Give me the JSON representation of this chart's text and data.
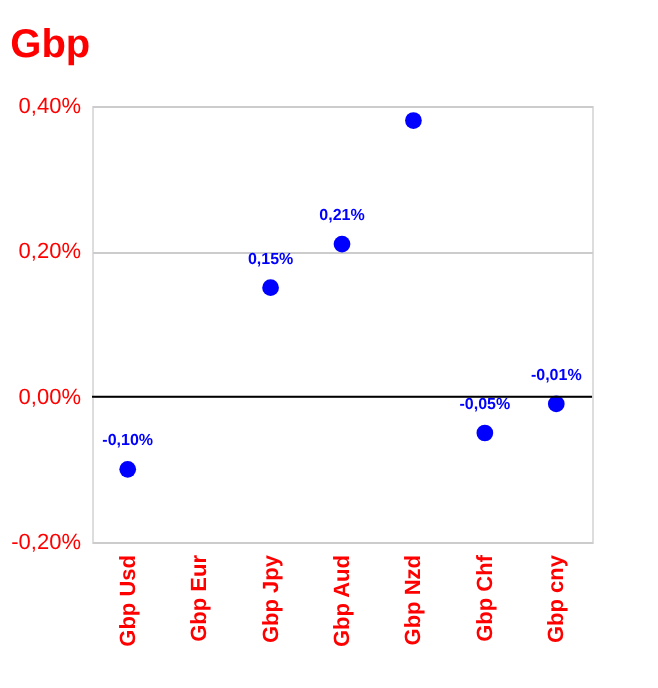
{
  "chart_data": {
    "type": "scatter",
    "title": "Gbp",
    "categories": [
      "Gbp Usd",
      "Gbp Eur",
      "Gbp Jpy",
      "Gbp Aud",
      "Gbp Nzd",
      "Gbp Chf",
      "Gbp cny"
    ],
    "series": [
      {
        "color": "#0000ff",
        "values": [
          -0.1,
          null,
          0.15,
          0.21,
          0.38,
          -0.05,
          -0.01
        ],
        "value_labels": [
          "-0,10%",
          null,
          "0,15%",
          "0,21%",
          null,
          "-0,05%",
          "-0,01%"
        ]
      }
    ],
    "ylim": [
      -0.2,
      0.4
    ],
    "yticks": [
      {
        "value": -0.2,
        "label": "-0,20%"
      },
      {
        "value": 0,
        "label": "0,00%"
      },
      {
        "value": 0.2,
        "label": "0,20%"
      },
      {
        "value": 0.4,
        "label": "0,40%"
      }
    ],
    "ref_lines": [
      {
        "axis": "y",
        "value": 0,
        "color": "#000000"
      }
    ],
    "grid": "y",
    "marker": "circle"
  }
}
